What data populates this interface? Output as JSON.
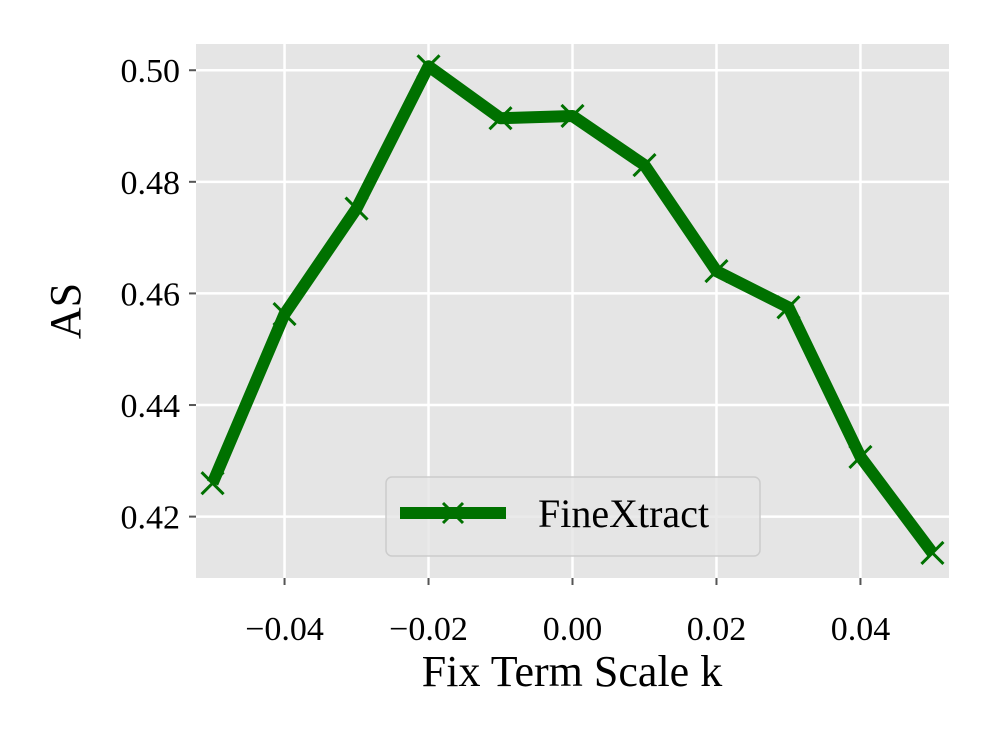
{
  "chart_data": {
    "type": "line",
    "xlabel": "Fix Term Scale k",
    "ylabel": "AS",
    "xlim": [
      -0.0523,
      0.0523
    ],
    "ylim": [
      0.409,
      0.5047
    ],
    "x_ticks": [
      -0.04,
      -0.02,
      0.0,
      0.02,
      0.04
    ],
    "x_tick_labels": [
      "−0.04",
      "−0.02",
      "0.00",
      "0.02",
      "0.04"
    ],
    "y_ticks": [
      0.42,
      0.44,
      0.46,
      0.48,
      0.5
    ],
    "y_tick_labels": [
      "0.42",
      "0.44",
      "0.46",
      "0.48",
      "0.50"
    ],
    "grid": true,
    "legend_position": "lower-right",
    "series": [
      {
        "name": "FineXtract",
        "color": "#007100",
        "marker": "x",
        "x": [
          -0.05,
          -0.04,
          -0.03,
          -0.02,
          -0.01,
          0.0,
          0.01,
          0.02,
          0.03,
          0.04,
          0.05
        ],
        "y": [
          0.426,
          0.4563,
          0.4752,
          0.5007,
          0.4914,
          0.4918,
          0.483,
          0.464,
          0.4575,
          0.4307,
          0.4135
        ]
      }
    ]
  }
}
